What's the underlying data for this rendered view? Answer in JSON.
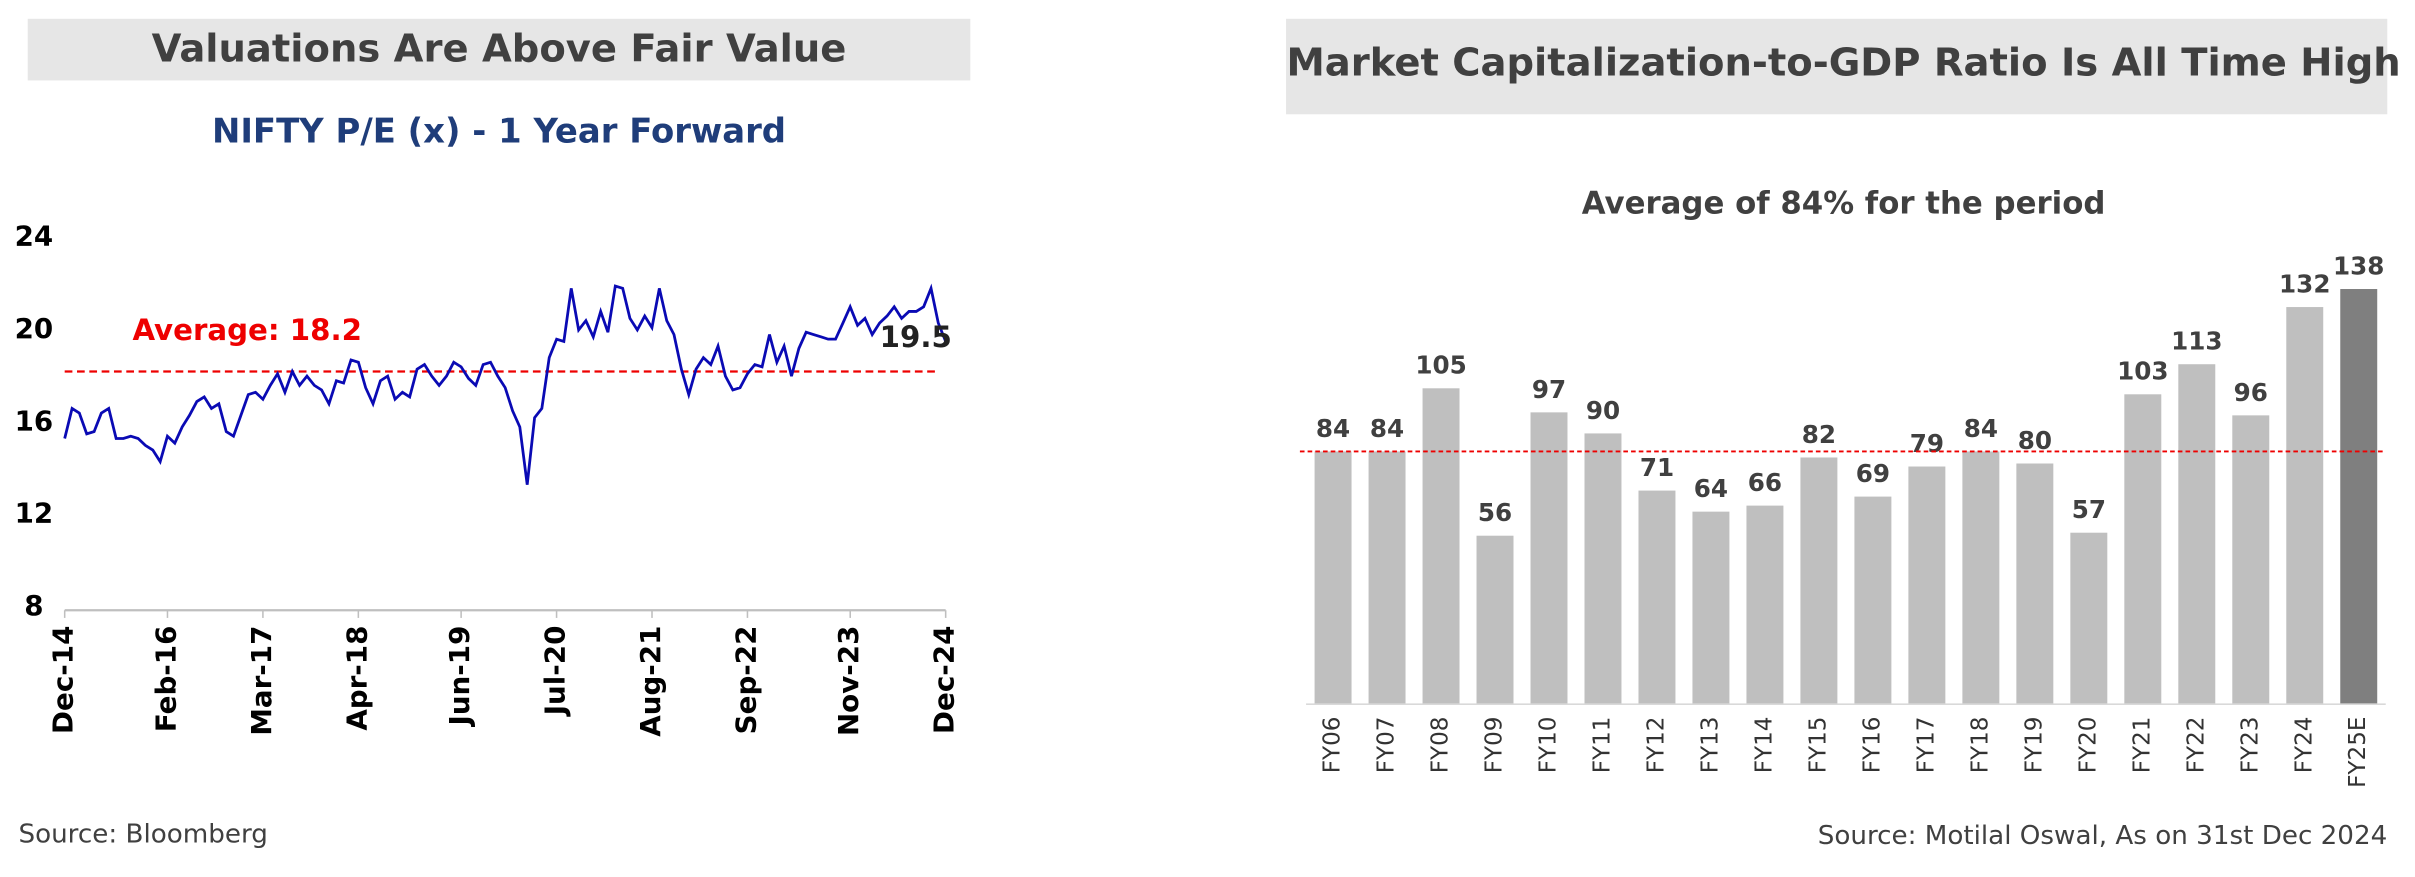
{
  "chart_data": [
    {
      "type": "line",
      "title": "Valuations Are Above Fair Value",
      "subtitle": "NIFTY P/E (x) - 1 Year Forward",
      "categories": [
        "Dec-14",
        null,
        null,
        null,
        null,
        null,
        null,
        null,
        null,
        null,
        null,
        null,
        null,
        null,
        "Feb-16",
        null,
        null,
        null,
        null,
        null,
        null,
        null,
        null,
        null,
        null,
        null,
        null,
        "Mar-17",
        null,
        null,
        null,
        null,
        null,
        null,
        null,
        null,
        null,
        null,
        null,
        null,
        "Apr-18",
        null,
        null,
        null,
        null,
        null,
        null,
        null,
        null,
        null,
        null,
        null,
        null,
        null,
        "Jun-19",
        null,
        null,
        null,
        null,
        null,
        null,
        null,
        null,
        null,
        null,
        null,
        null,
        "Jul-20",
        null,
        null,
        null,
        null,
        null,
        null,
        null,
        null,
        null,
        null,
        null,
        null,
        "Aug-21",
        null,
        null,
        null,
        null,
        null,
        null,
        null,
        null,
        null,
        null,
        null,
        null,
        "Sep-22",
        null,
        null,
        null,
        null,
        null,
        null,
        null,
        null,
        null,
        null,
        null,
        null,
        null,
        "Nov-23",
        null,
        null,
        null,
        null,
        null,
        null,
        null,
        null,
        null,
        null,
        null,
        null,
        "Dec-24"
      ],
      "values": [
        15.3,
        16.6,
        16.4,
        15.5,
        15.6,
        16.4,
        16.6,
        15.3,
        15.3,
        15.4,
        15.3,
        15.0,
        14.8,
        14.3,
        15.4,
        15.1,
        15.8,
        16.3,
        16.9,
        17.1,
        16.6,
        16.8,
        15.6,
        15.4,
        16.3,
        17.2,
        17.3,
        17.0,
        17.6,
        18.1,
        17.3,
        18.2,
        17.6,
        18.0,
        17.6,
        17.4,
        16.8,
        17.8,
        17.7,
        18.7,
        18.6,
        17.5,
        16.8,
        17.8,
        18.0,
        17.0,
        17.3,
        17.1,
        18.3,
        18.5,
        18.0,
        17.6,
        18.0,
        18.6,
        18.4,
        17.9,
        17.6,
        18.5,
        18.6,
        18.0,
        17.5,
        16.5,
        15.8,
        13.3,
        16.2,
        16.6,
        18.8,
        19.6,
        19.5,
        21.8,
        20.0,
        20.4,
        19.7,
        20.8,
        19.9,
        21.9,
        21.8,
        20.5,
        20.0,
        20.6,
        20.1,
        21.8,
        20.4,
        19.8,
        18.3,
        17.2,
        18.3,
        18.8,
        18.5,
        19.3,
        18.0,
        17.4,
        17.5,
        18.1,
        18.5,
        18.4,
        19.8,
        18.6,
        19.3,
        18.0,
        19.2,
        19.9,
        19.8,
        19.7,
        19.6,
        19.6,
        20.3,
        21.0,
        20.2,
        20.5,
        19.8,
        20.3,
        20.6,
        21.0,
        20.5,
        20.8,
        20.8,
        21.0,
        21.8,
        20.3,
        19.5
      ],
      "color": "#0a0ab4",
      "ylim": [
        8,
        24
      ],
      "yticks": [
        8,
        12,
        16,
        20,
        24
      ],
      "average": 18.2,
      "average_label": "Average: 18.2",
      "end_label": "19.5",
      "source": "Source: Bloomberg"
    },
    {
      "type": "bar",
      "title": "Market Capitalization-to-GDP Ratio Is All Time High",
      "subtitle": "Average of 84% for the period",
      "categories": [
        "FY06",
        "FY07",
        "FY08",
        "FY09",
        "FY10",
        "FY11",
        "FY12",
        "FY13",
        "FY14",
        "FY15",
        "FY16",
        "FY17",
        "FY18",
        "FY19",
        "FY20",
        "FY21",
        "FY22",
        "FY23",
        "FY24",
        "FY25E"
      ],
      "values": [
        84,
        84,
        105,
        56,
        97,
        90,
        71,
        64,
        66,
        82,
        69,
        79,
        84,
        80,
        57,
        103,
        113,
        96,
        132,
        138
      ],
      "colors": [
        "#bfbfbf",
        "#bfbfbf",
        "#bfbfbf",
        "#bfbfbf",
        "#bfbfbf",
        "#bfbfbf",
        "#bfbfbf",
        "#bfbfbf",
        "#bfbfbf",
        "#bfbfbf",
        "#bfbfbf",
        "#bfbfbf",
        "#bfbfbf",
        "#bfbfbf",
        "#bfbfbf",
        "#bfbfbf",
        "#bfbfbf",
        "#bfbfbf",
        "#bfbfbf",
        "#7f7f7f"
      ],
      "ylim": [
        0,
        150
      ],
      "average": 84,
      "source": "Source: Motilal Oswal, As on 31st Dec 2024"
    }
  ]
}
